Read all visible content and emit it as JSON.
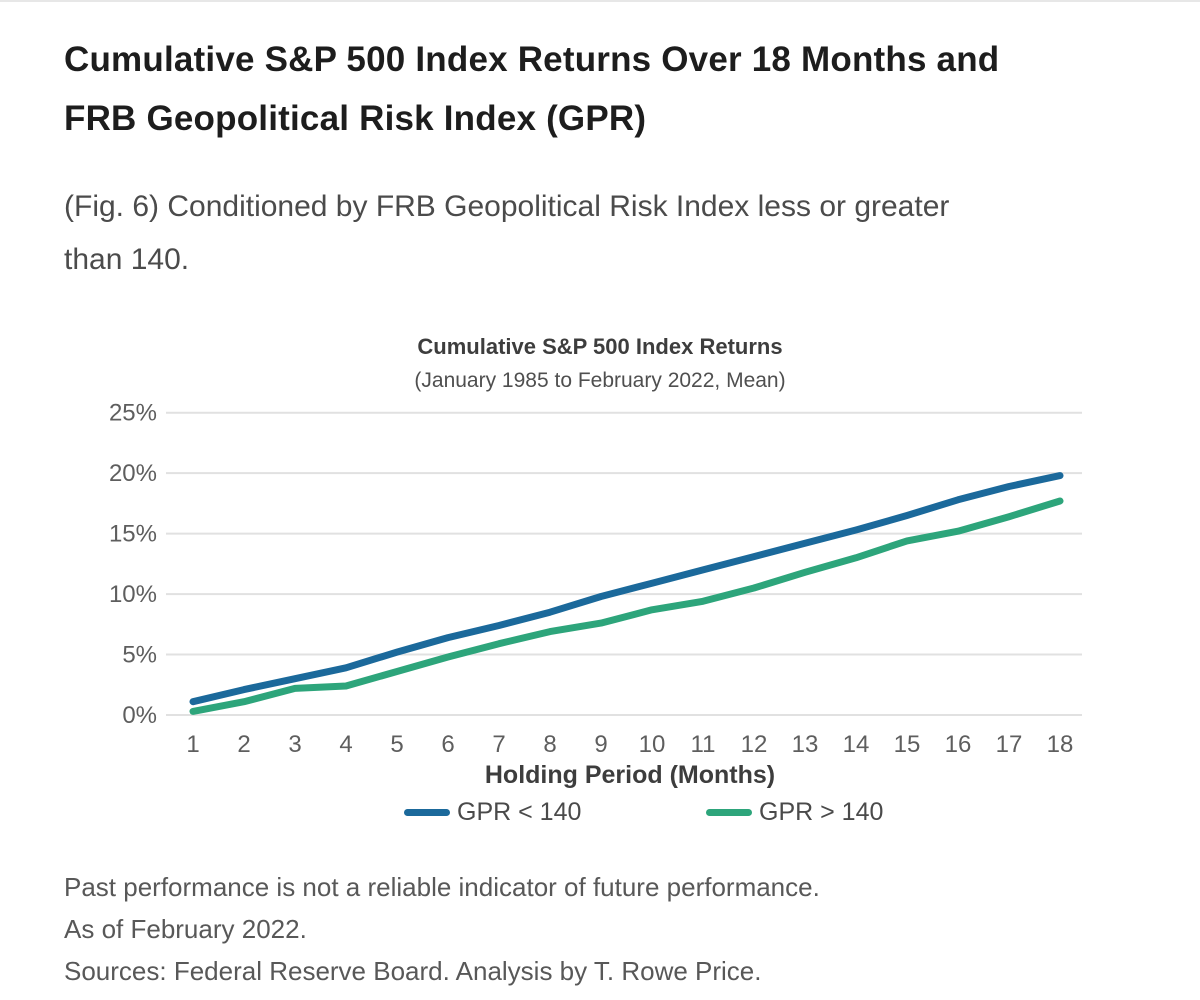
{
  "page": {
    "title_lines": [
      "Cumulative S&P 500 Index Returns Over 18 Months and",
      "FRB Geopolitical Risk Index (GPR)"
    ],
    "caption_lines": [
      "(Fig. 6) Conditioned by FRB Geopolitical Risk Index less or greater",
      "than 140."
    ],
    "footnotes": [
      "Past performance is not a reliable indicator of future performance.",
      "As of February 2022.",
      "Sources: Federal Reserve Board. Analysis by T. Rowe Price."
    ]
  },
  "chart_data": {
    "type": "line",
    "title": "Cumulative S&P 500 Index Returns",
    "subtitle": "(January 1985 to February 2022, Mean)",
    "xlabel": "Holding Period (Months)",
    "x": [
      1,
      2,
      3,
      4,
      5,
      6,
      7,
      8,
      9,
      10,
      11,
      12,
      13,
      14,
      15,
      16,
      17,
      18
    ],
    "series": [
      {
        "name": "GPR < 140",
        "color": "#1b699b",
        "values": [
          1.1,
          2.1,
          3.0,
          3.9,
          5.2,
          6.4,
          7.4,
          8.5,
          9.8,
          10.9,
          12.0,
          13.1,
          14.2,
          15.3,
          16.5,
          17.8,
          18.9,
          19.8
        ]
      },
      {
        "name": "GPR > 140",
        "color": "#2da57b",
        "values": [
          0.3,
          1.1,
          2.2,
          2.4,
          3.6,
          4.8,
          5.9,
          6.9,
          7.6,
          8.7,
          9.4,
          10.5,
          11.8,
          13.0,
          14.4,
          15.2,
          16.4,
          17.7
        ]
      }
    ],
    "ylim": [
      0,
      25
    ],
    "ytick_step": 5,
    "ytick_suffix": "%",
    "yticks": [
      "0%",
      "5%",
      "10%",
      "15%",
      "20%",
      "25%"
    ],
    "grid": true,
    "gridline_color": "#e1e1e1",
    "tick_label_color": "#5e5e5e",
    "legend_position": "bottom"
  }
}
